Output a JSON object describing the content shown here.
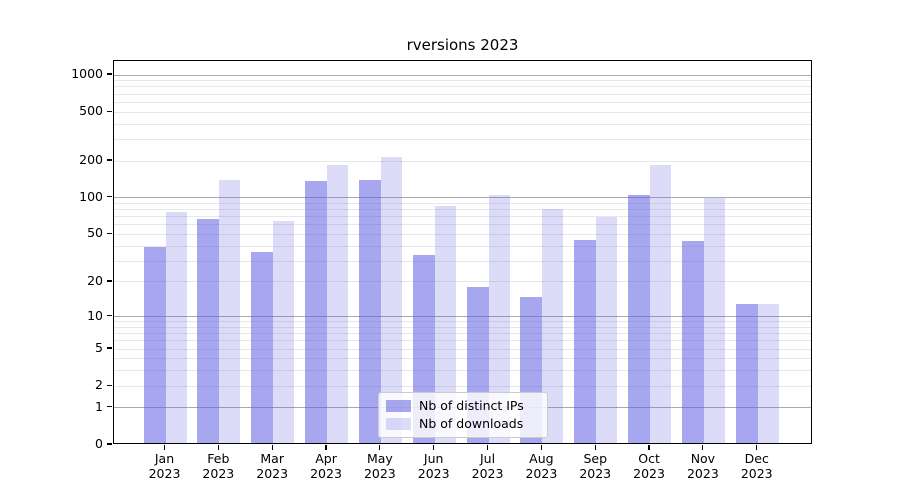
{
  "chart_data": {
    "type": "bar",
    "title": "rversions 2023",
    "categories": [
      {
        "month": "Jan",
        "year": "2023"
      },
      {
        "month": "Feb",
        "year": "2023"
      },
      {
        "month": "Mar",
        "year": "2023"
      },
      {
        "month": "Apr",
        "year": "2023"
      },
      {
        "month": "May",
        "year": "2023"
      },
      {
        "month": "Jun",
        "year": "2023"
      },
      {
        "month": "Jul",
        "year": "2023"
      },
      {
        "month": "Aug",
        "year": "2023"
      },
      {
        "month": "Sep",
        "year": "2023"
      },
      {
        "month": "Oct",
        "year": "2023"
      },
      {
        "month": "Nov",
        "year": "2023"
      },
      {
        "month": "Dec",
        "year": "2023"
      }
    ],
    "series": [
      {
        "name": "Nb of distinct IPs",
        "color": "rgba(94,94,226,0.55)",
        "color_on_white_hex": "#a7a7f0",
        "values": [
          39,
          67,
          36,
          138,
          141,
          34,
          18,
          15,
          45,
          106,
          44,
          13
        ]
      },
      {
        "name": "Nb of downloads",
        "color": "rgba(94,94,226,0.22)",
        "color_on_white_hex": "#d9d9f8",
        "values": [
          76,
          140,
          64,
          185,
          216,
          86,
          105,
          81,
          69,
          185,
          100,
          13
        ]
      }
    ],
    "y_ticks": [
      0,
      1,
      2,
      5,
      10,
      20,
      50,
      100,
      200,
      500,
      1000
    ],
    "y_scale": "log10(value+1)",
    "ylim": [
      0,
      1300
    ],
    "grid": {
      "major_lines": [
        1,
        10,
        100,
        1000
      ],
      "minor_lines": [
        2,
        3,
        4,
        5,
        6,
        7,
        8,
        9,
        20,
        30,
        40,
        50,
        60,
        70,
        80,
        90,
        200,
        300,
        400,
        500,
        600,
        700,
        800,
        900
      ],
      "major_color": "#a9a9a9",
      "minor_color": "#e7e7e7"
    },
    "legend_position": "lower-center",
    "text_color": "#000000"
  }
}
